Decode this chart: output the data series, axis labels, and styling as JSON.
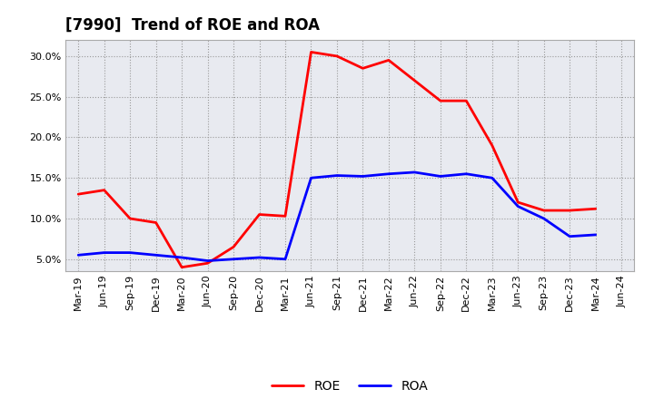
{
  "title": "[7990]  Trend of ROE and ROA",
  "x_labels": [
    "Mar-19",
    "Jun-19",
    "Sep-19",
    "Dec-19",
    "Mar-20",
    "Jun-20",
    "Sep-20",
    "Dec-20",
    "Mar-21",
    "Jun-21",
    "Sep-21",
    "Dec-21",
    "Mar-22",
    "Jun-22",
    "Sep-22",
    "Dec-22",
    "Mar-23",
    "Jun-23",
    "Sep-23",
    "Dec-23",
    "Mar-24",
    "Jun-24"
  ],
  "roe": [
    13.0,
    13.5,
    10.0,
    9.5,
    4.0,
    4.5,
    6.5,
    10.5,
    10.3,
    30.5,
    30.0,
    28.5,
    29.5,
    27.0,
    24.5,
    24.5,
    19.0,
    12.0,
    11.0,
    11.0,
    11.2,
    null
  ],
  "roa": [
    5.5,
    5.8,
    5.8,
    5.5,
    5.2,
    4.8,
    5.0,
    5.2,
    5.0,
    15.0,
    15.3,
    15.2,
    15.5,
    15.7,
    15.2,
    15.5,
    15.0,
    11.5,
    10.0,
    7.8,
    8.0,
    null
  ],
  "roe_color": "#ff0000",
  "roa_color": "#0000ff",
  "background_color": "#ffffff",
  "plot_bg_color": "#e8eaf0",
  "grid_color": "#999999",
  "ylim": [
    3.5,
    32.0
  ],
  "yticks": [
    5.0,
    10.0,
    15.0,
    20.0,
    25.0,
    30.0
  ],
  "title_fontsize": 12,
  "tick_fontsize": 8
}
